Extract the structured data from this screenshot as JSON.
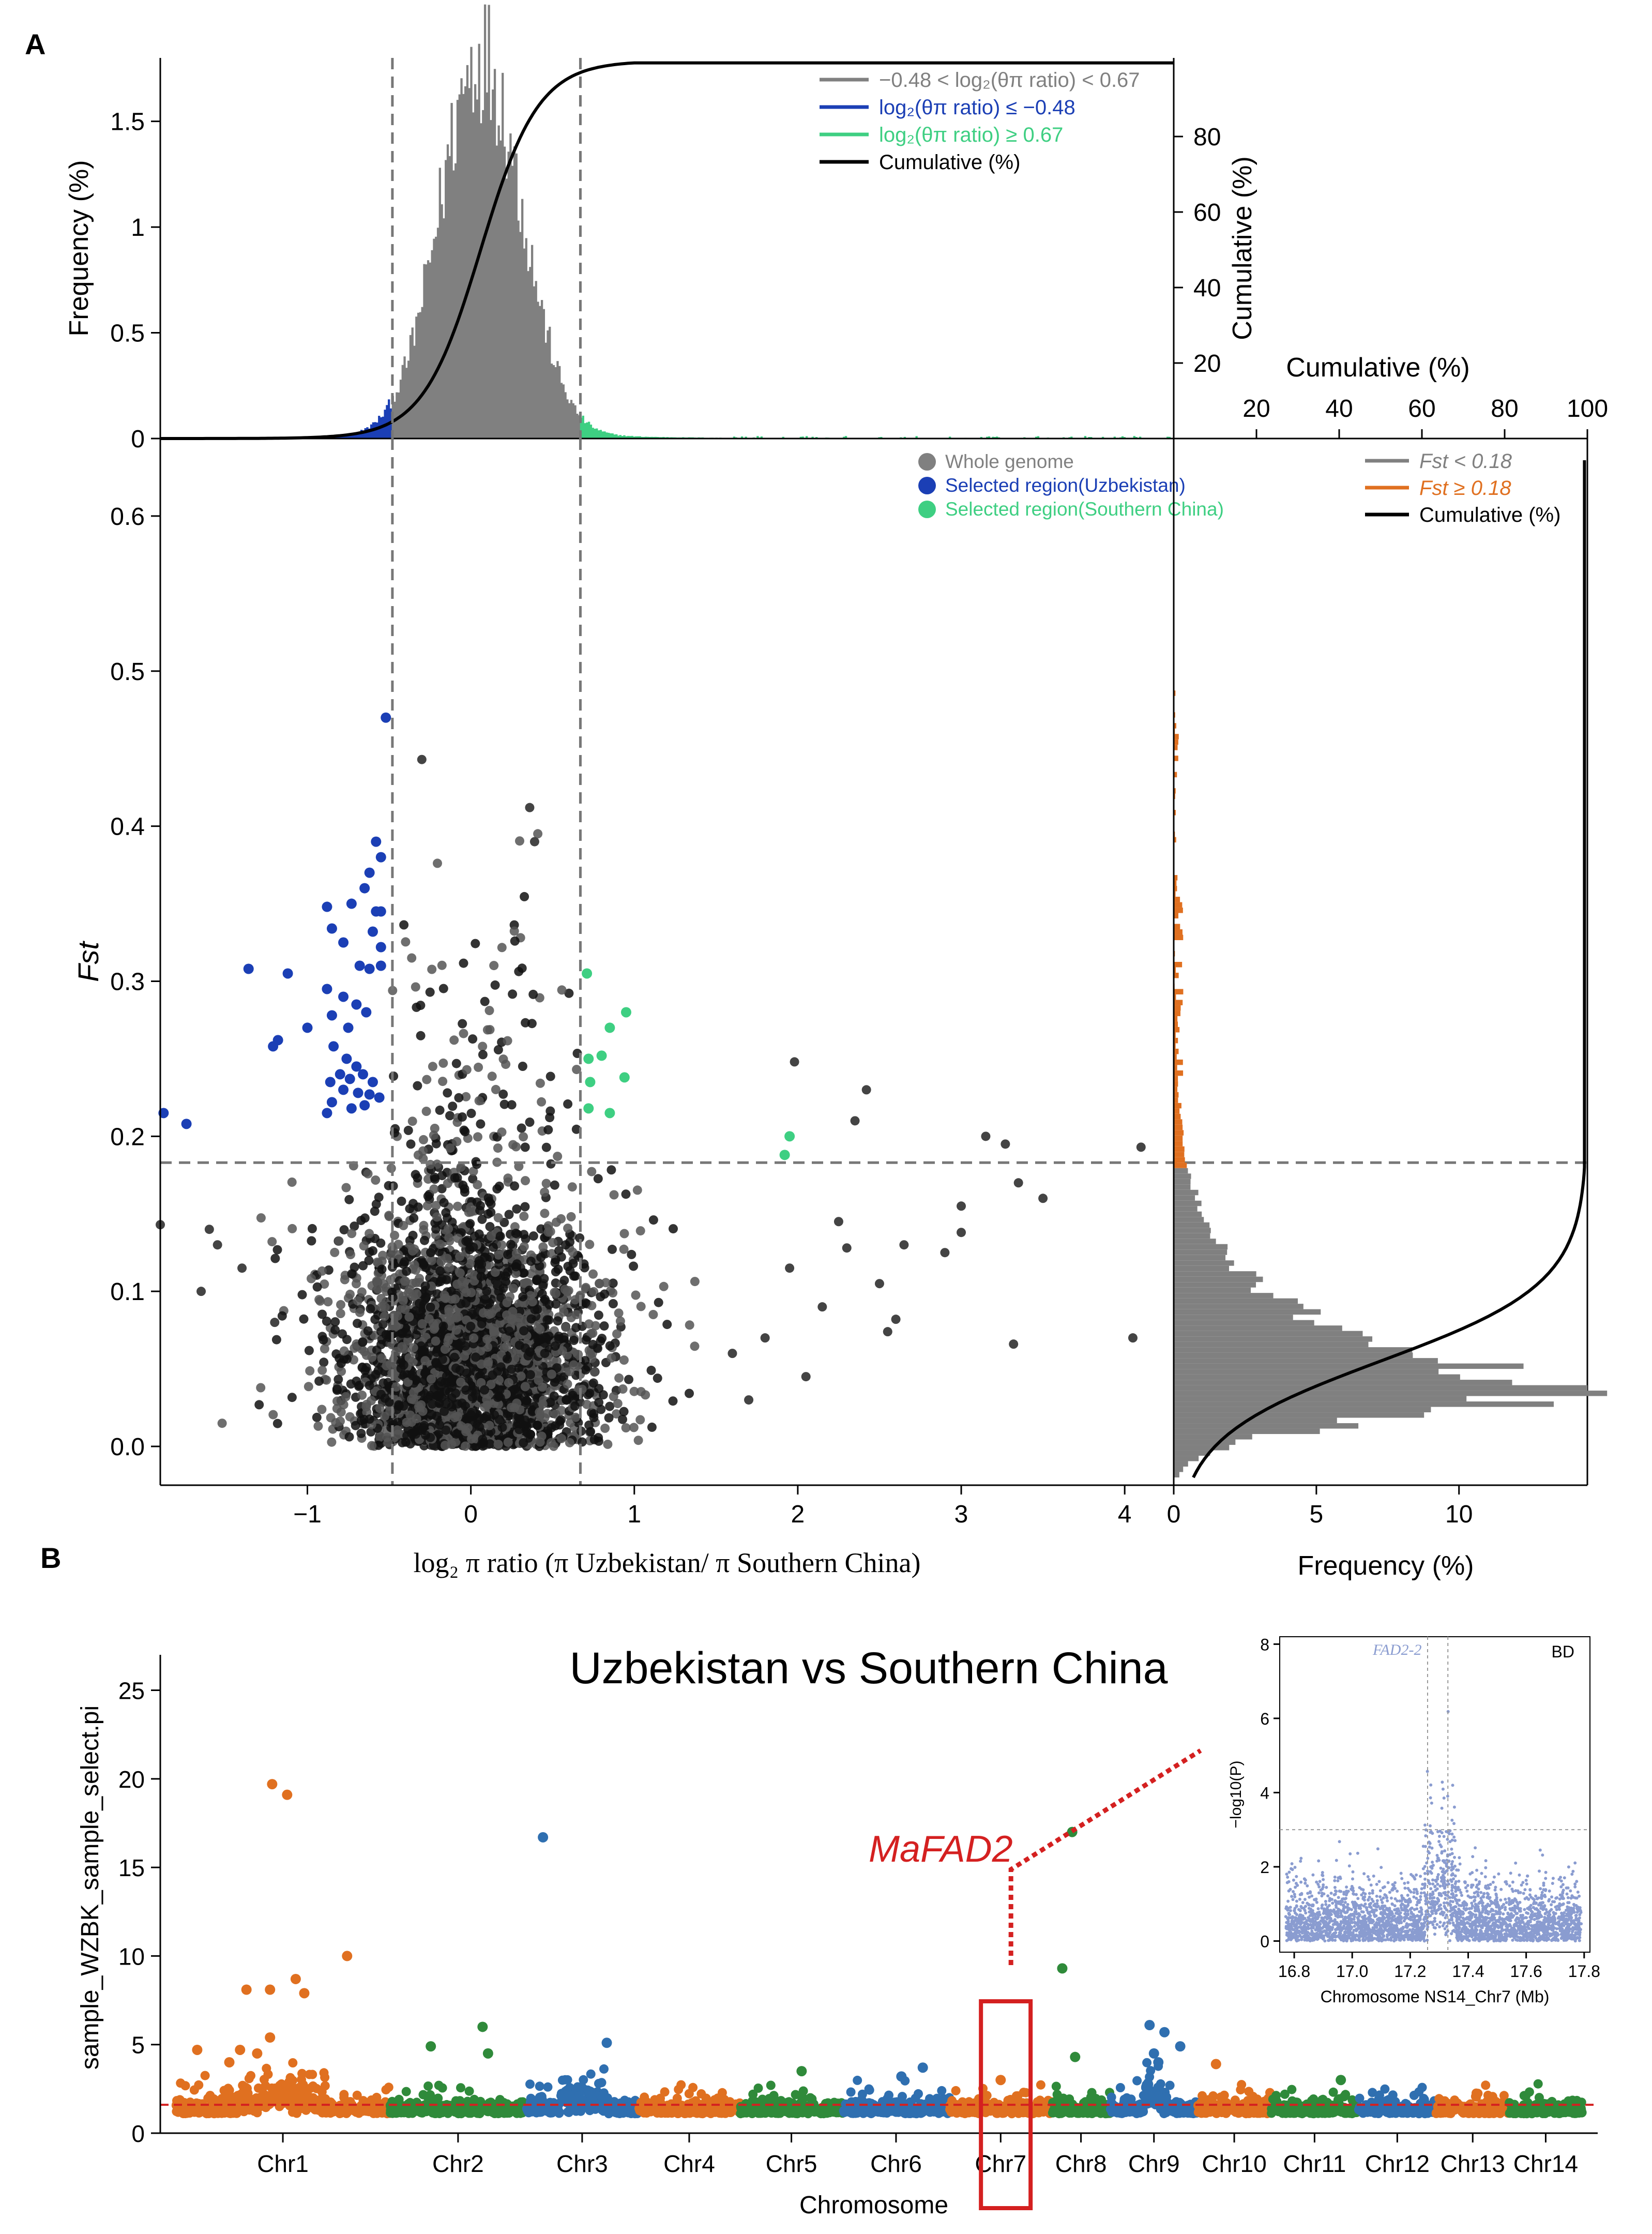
{
  "panel_labels": {
    "a": "A",
    "b": "B"
  },
  "colors": {
    "gray": "#808080",
    "blue": "#1b3fb5",
    "green": "#3ecf82",
    "orange": "#e07020",
    "chr_green": "#2f8a3a",
    "chr_blue": "#2f6fb0",
    "red": "#d42020",
    "inset_blue": "#8a9cd0",
    "black": "#000000"
  },
  "chart_data": [
    {
      "id": "top_histogram",
      "type": "histogram",
      "xlim": [
        -1.9,
        4.3
      ],
      "ylim": [
        0,
        1.8
      ],
      "ylabel": "Frequency (%)",
      "yticks": [
        "0",
        "0.5",
        "1",
        "1.5"
      ],
      "ytick_values": [
        0,
        0.5,
        1,
        1.5
      ],
      "right_ylabel": "Cumulative (%)",
      "right_ylim": [
        0,
        100
      ],
      "right_yticks": [
        "20",
        "40",
        "60",
        "80"
      ],
      "right_ytick_values": [
        20,
        40,
        60,
        80
      ],
      "thresholds": [
        -0.48,
        0.67
      ],
      "distribution": {
        "center": 0.06,
        "sd": 0.25,
        "peak": 1.78
      },
      "legend": [
        {
          "label": "−0.48 < log₂(θπ ratio) < 0.67",
          "color": "#808080"
        },
        {
          "label": "log₂(θπ ratio) ≤ −0.48",
          "color": "#1b3fb5"
        },
        {
          "label": "log₂(θπ ratio) ≥ 0.67",
          "color": "#3ecf82"
        },
        {
          "label": "Cumulative (%)",
          "color": "#000000"
        }
      ]
    },
    {
      "id": "scatter",
      "type": "scatter",
      "xlim": [
        -1.9,
        4.3
      ],
      "ylim": [
        -0.025,
        0.65
      ],
      "xlabel": "log₂ π ratio (π Uzbekistan/ π Southern China)",
      "ylabel": "Fst",
      "xticks": [
        "−1",
        "0",
        "1",
        "2",
        "3",
        "4"
      ],
      "xtick_values": [
        -1,
        0,
        1,
        2,
        3,
        4
      ],
      "yticks": [
        "0.0",
        "0.1",
        "0.2",
        "0.3",
        "0.4",
        "0.5",
        "0.6"
      ],
      "ytick_values": [
        0,
        0.1,
        0.2,
        0.3,
        0.4,
        0.5,
        0.6
      ],
      "hline": 0.183,
      "vlines": [
        -0.48,
        0.67
      ],
      "legend": [
        {
          "label": "Whole genome",
          "color": "#808080"
        },
        {
          "label": "Selected region(Uzbekistan)",
          "color": "#1b3fb5"
        },
        {
          "label": "Selected region(Southern China)",
          "color": "#3ecf82"
        }
      ],
      "bulk": {
        "x_center": 0.0,
        "x_sd": 0.28,
        "y_center": 0.05,
        "y_sd": 0.04,
        "n": 3200
      },
      "selected_uzbekistan": [
        [
          -0.52,
          0.47
        ],
        [
          -0.58,
          0.39
        ],
        [
          -0.55,
          0.38
        ],
        [
          -0.62,
          0.37
        ],
        [
          -0.65,
          0.36
        ],
        [
          -0.58,
          0.345
        ],
        [
          -0.55,
          0.345
        ],
        [
          -0.73,
          0.35
        ],
        [
          -0.88,
          0.348
        ],
        [
          -0.85,
          0.334
        ],
        [
          -0.78,
          0.325
        ],
        [
          -0.6,
          0.332
        ],
        [
          -0.55,
          0.322
        ],
        [
          -1.36,
          0.308
        ],
        [
          -1.12,
          0.305
        ],
        [
          -0.68,
          0.31
        ],
        [
          -0.62,
          0.308
        ],
        [
          -0.55,
          0.31
        ],
        [
          -0.88,
          0.295
        ],
        [
          -0.78,
          0.29
        ],
        [
          -0.7,
          0.285
        ],
        [
          -0.64,
          0.28
        ],
        [
          -0.85,
          0.278
        ],
        [
          -0.75,
          0.27
        ],
        [
          -1.0,
          0.27
        ],
        [
          -1.18,
          0.262
        ],
        [
          -1.21,
          0.258
        ],
        [
          -0.84,
          0.258
        ],
        [
          -0.76,
          0.25
        ],
        [
          -0.7,
          0.245
        ],
        [
          -0.8,
          0.24
        ],
        [
          -0.74,
          0.237
        ],
        [
          -0.66,
          0.24
        ],
        [
          -0.6,
          0.235
        ],
        [
          -0.86,
          0.235
        ],
        [
          -0.78,
          0.23
        ],
        [
          -0.69,
          0.228
        ],
        [
          -0.62,
          0.227
        ],
        [
          -0.56,
          0.225
        ],
        [
          -0.85,
          0.222
        ],
        [
          -0.88,
          0.215
        ],
        [
          -0.73,
          0.218
        ],
        [
          -0.65,
          0.22
        ],
        [
          -1.88,
          0.215
        ],
        [
          -1.74,
          0.208
        ]
      ],
      "selected_southern_china": [
        [
          0.71,
          0.305
        ],
        [
          0.95,
          0.28
        ],
        [
          0.85,
          0.27
        ],
        [
          0.72,
          0.25
        ],
        [
          0.8,
          0.252
        ],
        [
          0.73,
          0.235
        ],
        [
          0.94,
          0.238
        ],
        [
          0.72,
          0.218
        ],
        [
          0.85,
          0.215
        ],
        [
          1.95,
          0.2
        ],
        [
          1.92,
          0.188
        ]
      ],
      "outliers": [
        [
          -0.3,
          0.443
        ],
        [
          0.36,
          0.412
        ],
        [
          0.39,
          0.39
        ],
        [
          2.42,
          0.23
        ],
        [
          1.98,
          0.248
        ],
        [
          2.35,
          0.21
        ],
        [
          3.15,
          0.2
        ],
        [
          3.5,
          0.16
        ],
        [
          3.27,
          0.195
        ],
        [
          3.35,
          0.17
        ],
        [
          4.1,
          0.193
        ],
        [
          3.0,
          0.155
        ],
        [
          3.0,
          0.138
        ],
        [
          2.9,
          0.125
        ],
        [
          2.65,
          0.13
        ],
        [
          2.3,
          0.128
        ],
        [
          2.25,
          0.145
        ],
        [
          2.5,
          0.105
        ],
        [
          2.15,
          0.09
        ],
        [
          1.95,
          0.115
        ],
        [
          4.05,
          0.07
        ],
        [
          3.32,
          0.066
        ],
        [
          2.6,
          0.082
        ],
        [
          2.55,
          0.074
        ],
        [
          -1.6,
          0.14
        ],
        [
          -1.55,
          0.13
        ],
        [
          -1.4,
          0.115
        ],
        [
          -1.2,
          0.08
        ],
        [
          -1.9,
          0.143
        ],
        [
          -1.65,
          0.1
        ],
        [
          1.6,
          0.06
        ],
        [
          1.8,
          0.07
        ],
        [
          2.05,
          0.045
        ],
        [
          1.7,
          0.03
        ]
      ]
    },
    {
      "id": "right_histogram",
      "type": "histogram_horizontal",
      "xlim": [
        0,
        14.5
      ],
      "xlabel": "Frequency (%)",
      "xticks": [
        "0",
        "5",
        "10"
      ],
      "xtick_values": [
        0,
        5,
        10
      ],
      "top_xlabel": "Cumulative (%)",
      "top_xticks": [
        "20",
        "40",
        "60",
        "80",
        "100"
      ],
      "top_xtick_values": [
        20,
        40,
        60,
        80,
        100
      ],
      "threshold": 0.18,
      "distribution": {
        "mode": 0.04,
        "peak": 13.9
      },
      "legend": [
        {
          "label": "Fst < 0.18",
          "color": "#808080"
        },
        {
          "label": "Fst ≥ 0.18",
          "color": "#e07020"
        },
        {
          "label": "Cumulative (%)",
          "color": "#000000"
        }
      ]
    },
    {
      "id": "manhattan",
      "type": "scatter",
      "title": "Uzbekistan vs Southern China",
      "xlabel": "Chromosome",
      "ylabel": "sample_WZBK_sample_select.pi",
      "ylim": [
        0,
        27
      ],
      "yticks": [
        "0",
        "5",
        "10",
        "15",
        "20",
        "25"
      ],
      "ytick_values": [
        0,
        5,
        10,
        15,
        20,
        25
      ],
      "threshold": 1.6,
      "chromosomes": [
        {
          "name": "Chr1",
          "length": 44,
          "color": "orange"
        },
        {
          "name": "Chr2",
          "length": 28,
          "color": "chr_green"
        },
        {
          "name": "Chr3",
          "length": 23,
          "color": "chr_blue"
        },
        {
          "name": "Chr4",
          "length": 21,
          "color": "orange"
        },
        {
          "name": "Chr5",
          "length": 21,
          "color": "chr_green"
        },
        {
          "name": "Chr6",
          "length": 22,
          "color": "chr_blue"
        },
        {
          "name": "Chr7",
          "length": 21,
          "color": "orange"
        },
        {
          "name": "Chr8",
          "length": 12,
          "color": "chr_green"
        },
        {
          "name": "Chr9",
          "length": 18,
          "color": "chr_blue"
        },
        {
          "name": "Chr10",
          "length": 15,
          "color": "orange"
        },
        {
          "name": "Chr11",
          "length": 18,
          "color": "chr_green"
        },
        {
          "name": "Chr12",
          "length": 16,
          "color": "chr_blue"
        },
        {
          "name": "Chr13",
          "length": 15,
          "color": "orange"
        },
        {
          "name": "Chr14",
          "length": 15,
          "color": "chr_green"
        }
      ],
      "peaks": [
        {
          "chr": 0,
          "pos": 0.45,
          "y": 19.7
        },
        {
          "chr": 0,
          "pos": 0.52,
          "y": 19.1
        },
        {
          "chr": 0,
          "pos": 0.33,
          "y": 8.1
        },
        {
          "chr": 0,
          "pos": 0.44,
          "y": 8.1
        },
        {
          "chr": 0,
          "pos": 0.56,
          "y": 8.7
        },
        {
          "chr": 0,
          "pos": 0.6,
          "y": 7.9
        },
        {
          "chr": 0,
          "pos": 0.8,
          "y": 10.0
        },
        {
          "chr": 0,
          "pos": 0.44,
          "y": 5.4
        },
        {
          "chr": 0,
          "pos": 0.1,
          "y": 4.7
        },
        {
          "chr": 0,
          "pos": 0.3,
          "y": 4.7
        },
        {
          "chr": 0,
          "pos": 0.38,
          "y": 4.5
        },
        {
          "chr": 0,
          "pos": 0.25,
          "y": 4.0
        },
        {
          "chr": 2,
          "pos": 0.15,
          "y": 16.7
        },
        {
          "chr": 2,
          "pos": 0.72,
          "y": 5.1
        },
        {
          "chr": 1,
          "pos": 0.68,
          "y": 6.0
        },
        {
          "chr": 1,
          "pos": 0.3,
          "y": 4.9
        },
        {
          "chr": 1,
          "pos": 0.72,
          "y": 4.5
        },
        {
          "chr": 7,
          "pos": 0.35,
          "y": 17.0
        },
        {
          "chr": 7,
          "pos": 0.18,
          "y": 9.3
        },
        {
          "chr": 7,
          "pos": 0.4,
          "y": 4.3
        },
        {
          "chr": 8,
          "pos": 0.45,
          "y": 6.1
        },
        {
          "chr": 8,
          "pos": 0.62,
          "y": 5.7
        },
        {
          "chr": 8,
          "pos": 0.8,
          "y": 4.9
        },
        {
          "chr": 8,
          "pos": 0.5,
          "y": 4.5
        },
        {
          "chr": 8,
          "pos": 0.55,
          "y": 4.0
        },
        {
          "chr": 9,
          "pos": 0.25,
          "y": 3.9
        },
        {
          "chr": 4,
          "pos": 0.6,
          "y": 3.5
        },
        {
          "chr": 5,
          "pos": 0.75,
          "y": 3.7
        },
        {
          "chr": 5,
          "pos": 0.55,
          "y": 3.2
        },
        {
          "chr": 10,
          "pos": 0.8,
          "y": 3.0
        },
        {
          "chr": 6,
          "pos": 0.5,
          "y": 3.0
        }
      ],
      "gene_label": "MaFAD2",
      "highlight_chr": 6
    },
    {
      "id": "inset",
      "type": "scatter",
      "corner_label": "BD",
      "gene_label": "FAD2-2",
      "xlabel": "Chromosome NS14_Chr7 (Mb)",
      "ylabel": "−log10(P)",
      "xlim": [
        16.75,
        17.82
      ],
      "ylim": [
        -0.3,
        8.2
      ],
      "xticks": [
        "16.8",
        "17.0",
        "17.2",
        "17.4",
        "17.6",
        "17.8"
      ],
      "xtick_values": [
        16.8,
        17.0,
        17.2,
        17.4,
        17.6,
        17.8
      ],
      "yticks": [
        "0",
        "2",
        "4",
        "6",
        "8"
      ],
      "ytick_values": [
        0,
        2,
        4,
        6,
        8
      ],
      "hline": 3.0,
      "vlines": [
        17.26,
        17.33
      ]
    }
  ]
}
